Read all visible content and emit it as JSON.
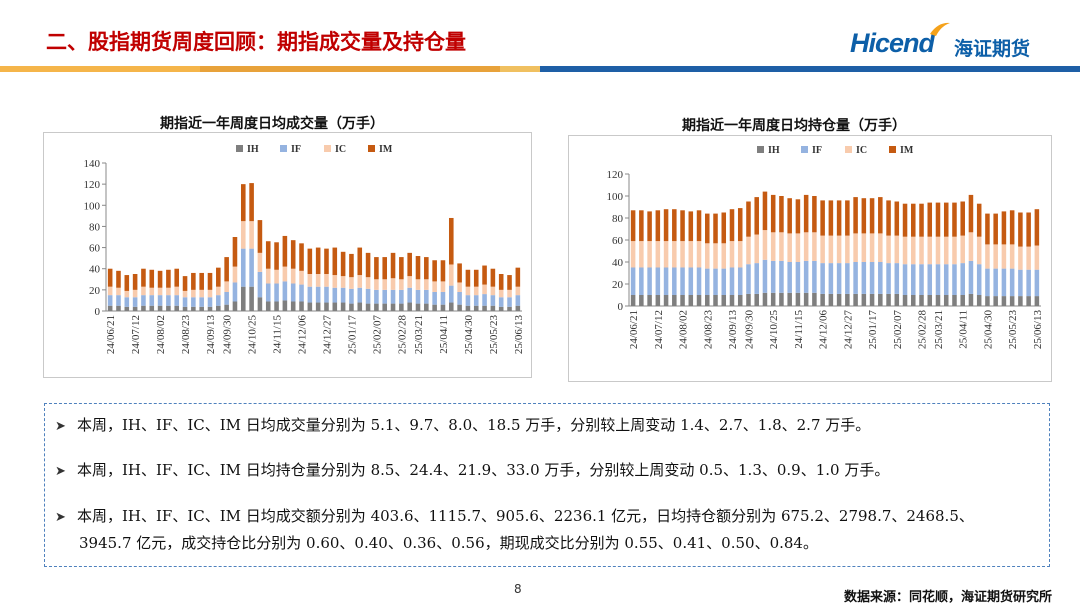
{
  "page": {
    "title": "二、股指期货周度回顾：期指成交量及持仓量",
    "logo_en": "Hicend",
    "logo_cn": "海证期货",
    "page_number": "8",
    "source": "数据来源：同花顺，海证期货研究所"
  },
  "colors": {
    "IH": "#7f7f7f",
    "IF": "#95b3e0",
    "IC": "#f8cbad",
    "IM": "#c55a11",
    "title_red": "#c00000",
    "brand_blue": "#0d5fa8"
  },
  "notes": [
    {
      "text": "本周，IH、IF、IC、IM 日均成交量分别为 5.1、9.7、8.0、18.5 万手，分别较上周变动 1.4、2.7、1.8、2.7 万手。",
      "cont": ""
    },
    {
      "text": "本周，IH、IF、IC、IM 日均持仓量分别为 8.5、24.4、21.9、33.0 万手，分别较上周变动 0.5、1.3、0.9、1.0 万手。",
      "cont": ""
    },
    {
      "text": "本周，IH、IF、IC、IM 日均成交额分别为 403.6、1115.7、905.6、2236.1 亿元，日均持仓额分别为 675.2、2798.7、2468.5、",
      "cont": "3945.7 亿元，成交持仓比分别为 0.60、0.40、0.36、0.56，期现成交比分别为 0.55、0.41、0.50、0.84。"
    }
  ],
  "chart_data": [
    {
      "type": "bar",
      "stacked": true,
      "title": "期指近一年周度日均成交量（万手）",
      "legend": [
        "IH",
        "IF",
        "IC",
        "IM"
      ],
      "legend_position": "top",
      "ylim": [
        0,
        140
      ],
      "yticks": [
        0,
        20,
        40,
        60,
        80,
        100,
        120,
        140
      ],
      "x_tick_labels": [
        "24/06/21",
        "24/07/12",
        "24/08/02",
        "24/08/23",
        "24/09/13",
        "24/09/30",
        "24/10/25",
        "24/11/15",
        "24/12/06",
        "24/12/27",
        "25/01/17",
        "25/02/07",
        "25/02/28",
        "25/03/21",
        "25/04/11",
        "25/04/30",
        "25/05/23",
        "25/06/13"
      ],
      "series": [
        {
          "name": "IH",
          "values": [
            5,
            5,
            4,
            4,
            5,
            5,
            5,
            5,
            5,
            4,
            4,
            4,
            4,
            5,
            6,
            9,
            23,
            23,
            13,
            9,
            9,
            10,
            9,
            9,
            8,
            8,
            8,
            8,
            8,
            7,
            8,
            7,
            7,
            7,
            7,
            7,
            8,
            7,
            7,
            6,
            6,
            8,
            6,
            5,
            5,
            5,
            5,
            4,
            4,
            5
          ]
        },
        {
          "name": "IF",
          "values": [
            10,
            10,
            9,
            9,
            10,
            10,
            10,
            10,
            10,
            9,
            9,
            9,
            9,
            10,
            12,
            18,
            36,
            36,
            24,
            17,
            17,
            18,
            17,
            16,
            15,
            15,
            15,
            14,
            14,
            14,
            14,
            14,
            13,
            13,
            13,
            13,
            14,
            13,
            13,
            12,
            12,
            16,
            12,
            10,
            10,
            11,
            10,
            9,
            9,
            10
          ]
        },
        {
          "name": "IC",
          "values": [
            8,
            7,
            6,
            7,
            8,
            7,
            7,
            7,
            8,
            6,
            7,
            7,
            7,
            8,
            10,
            15,
            26,
            26,
            18,
            14,
            13,
            14,
            14,
            13,
            12,
            12,
            12,
            12,
            11,
            11,
            12,
            11,
            10,
            10,
            11,
            10,
            11,
            10,
            10,
            10,
            10,
            20,
            9,
            8,
            8,
            9,
            8,
            7,
            7,
            8
          ]
        },
        {
          "name": "IM",
          "values": [
            17,
            16,
            15,
            15,
            17,
            17,
            16,
            17,
            17,
            14,
            16,
            16,
            16,
            18,
            23,
            28,
            35,
            36,
            31,
            26,
            26,
            29,
            27,
            26,
            24,
            25,
            24,
            26,
            23,
            22,
            26,
            23,
            21,
            21,
            24,
            21,
            22,
            22,
            21,
            20,
            20,
            44,
            18,
            16,
            16,
            18,
            17,
            15,
            14,
            18
          ]
        }
      ]
    },
    {
      "type": "bar",
      "stacked": true,
      "title": "期指近一年周度日均持仓量（万手）",
      "legend": [
        "IH",
        "IF",
        "IC",
        "IM"
      ],
      "legend_position": "top",
      "ylim": [
        0,
        120
      ],
      "yticks": [
        0,
        20,
        40,
        60,
        80,
        100,
        120
      ],
      "x_tick_labels": [
        "24/06/21",
        "24/07/12",
        "24/08/02",
        "24/08/23",
        "24/09/13",
        "24/09/30",
        "24/10/25",
        "24/11/15",
        "24/12/06",
        "24/12/27",
        "25/01/17",
        "25/02/07",
        "25/02/28",
        "25/03/21",
        "25/04/11",
        "25/04/30",
        "25/05/23",
        "25/06/13"
      ],
      "series": [
        {
          "name": "IH",
          "values": [
            10,
            10,
            10,
            10,
            10,
            10,
            10,
            10,
            10,
            10,
            10,
            10,
            10,
            10,
            11,
            11,
            12,
            12,
            12,
            12,
            12,
            12,
            12,
            11,
            11,
            11,
            11,
            11,
            11,
            11,
            11,
            11,
            11,
            10,
            10,
            10,
            10,
            10,
            10,
            10,
            10,
            11,
            10,
            9,
            9,
            9,
            9,
            9,
            9,
            9
          ]
        },
        {
          "name": "IF",
          "values": [
            25,
            25,
            25,
            25,
            25,
            25,
            25,
            25,
            25,
            24,
            24,
            24,
            25,
            25,
            27,
            28,
            30,
            29,
            29,
            28,
            28,
            29,
            29,
            28,
            28,
            28,
            28,
            29,
            29,
            29,
            29,
            28,
            28,
            28,
            28,
            28,
            28,
            28,
            28,
            28,
            29,
            30,
            28,
            25,
            25,
            25,
            25,
            24,
            24,
            24
          ]
        },
        {
          "name": "IC",
          "values": [
            24,
            24,
            24,
            24,
            24,
            24,
            24,
            24,
            24,
            23,
            23,
            23,
            24,
            24,
            25,
            26,
            27,
            26,
            26,
            26,
            26,
            26,
            26,
            25,
            25,
            25,
            25,
            26,
            26,
            26,
            26,
            25,
            25,
            25,
            25,
            25,
            25,
            25,
            25,
            25,
            25,
            26,
            25,
            22,
            22,
            22,
            22,
            21,
            21,
            22
          ]
        },
        {
          "name": "IM",
          "values": [
            28,
            28,
            27,
            28,
            29,
            29,
            28,
            27,
            28,
            27,
            27,
            28,
            29,
            30,
            32,
            34,
            35,
            34,
            33,
            32,
            31,
            34,
            33,
            32,
            32,
            32,
            32,
            33,
            32,
            32,
            33,
            32,
            31,
            30,
            30,
            30,
            31,
            31,
            31,
            31,
            31,
            34,
            30,
            28,
            28,
            30,
            31,
            31,
            31,
            33
          ]
        }
      ]
    }
  ]
}
